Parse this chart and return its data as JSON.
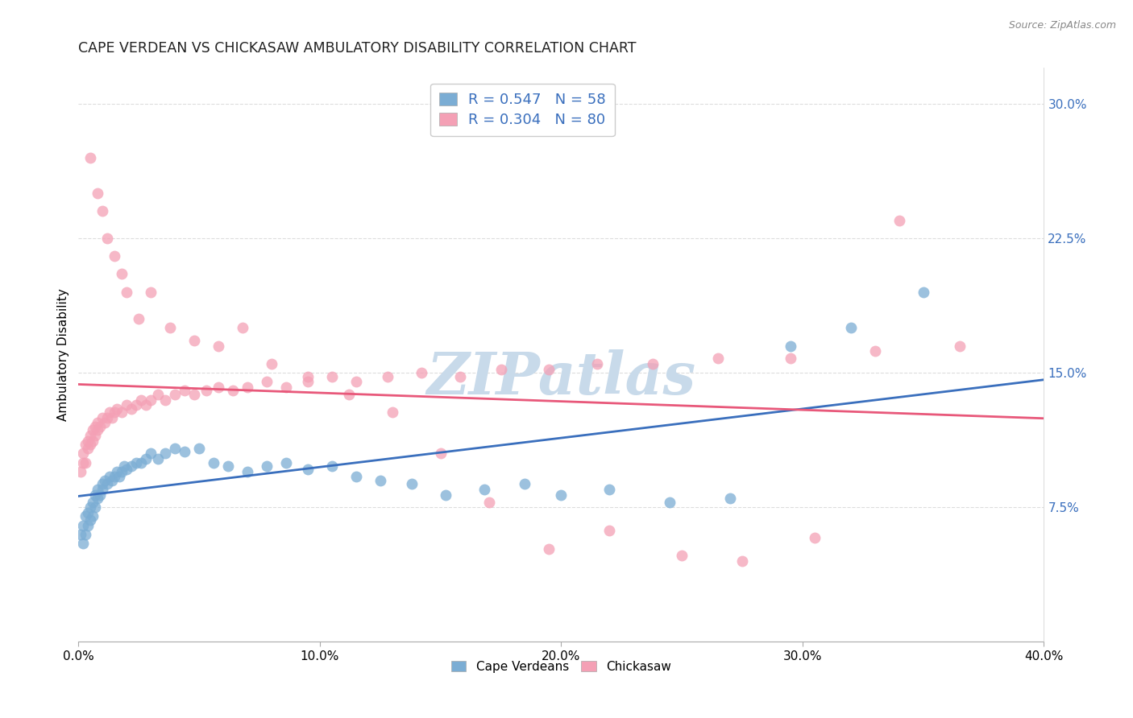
{
  "title": "CAPE VERDEAN VS CHICKASAW AMBULATORY DISABILITY CORRELATION CHART",
  "source": "Source: ZipAtlas.com",
  "ylabel": "Ambulatory Disability",
  "xlim": [
    0.0,
    0.4
  ],
  "ylim": [
    0.0,
    0.32
  ],
  "xticks": [
    0.0,
    0.1,
    0.2,
    0.3,
    0.4
  ],
  "yticks_right": [
    0.075,
    0.15,
    0.225,
    0.3
  ],
  "ytick_labels_right": [
    "7.5%",
    "15.0%",
    "22.5%",
    "30.0%"
  ],
  "xtick_labels": [
    "0.0%",
    "10.0%",
    "20.0%",
    "30.0%",
    "40.0%"
  ],
  "legend1_label": "R = 0.547   N = 58",
  "legend2_label": "R = 0.304   N = 80",
  "blue_color": "#7badd4",
  "pink_color": "#f4a0b5",
  "blue_line_color": "#3a6fbd",
  "pink_line_color": "#e8587a",
  "watermark": "ZIPatlas",
  "watermark_color": "#c8daea",
  "cape_verdeans_x": [
    0.001,
    0.002,
    0.002,
    0.003,
    0.003,
    0.004,
    0.004,
    0.005,
    0.005,
    0.006,
    0.006,
    0.007,
    0.007,
    0.008,
    0.008,
    0.009,
    0.01,
    0.01,
    0.011,
    0.012,
    0.013,
    0.014,
    0.015,
    0.016,
    0.017,
    0.018,
    0.019,
    0.02,
    0.022,
    0.024,
    0.026,
    0.028,
    0.03,
    0.033,
    0.036,
    0.04,
    0.044,
    0.05,
    0.056,
    0.062,
    0.07,
    0.078,
    0.086,
    0.095,
    0.105,
    0.115,
    0.125,
    0.138,
    0.152,
    0.168,
    0.185,
    0.2,
    0.22,
    0.245,
    0.27,
    0.295,
    0.32,
    0.35
  ],
  "cape_verdeans_y": [
    0.06,
    0.055,
    0.065,
    0.06,
    0.07,
    0.065,
    0.072,
    0.068,
    0.075,
    0.07,
    0.078,
    0.075,
    0.082,
    0.08,
    0.085,
    0.082,
    0.088,
    0.085,
    0.09,
    0.088,
    0.092,
    0.09,
    0.092,
    0.095,
    0.092,
    0.095,
    0.098,
    0.096,
    0.098,
    0.1,
    0.1,
    0.102,
    0.105,
    0.102,
    0.105,
    0.108,
    0.106,
    0.108,
    0.1,
    0.098,
    0.095,
    0.098,
    0.1,
    0.096,
    0.098,
    0.092,
    0.09,
    0.088,
    0.082,
    0.085,
    0.088,
    0.082,
    0.085,
    0.078,
    0.08,
    0.165,
    0.175,
    0.195
  ],
  "chickasaw_x": [
    0.001,
    0.002,
    0.002,
    0.003,
    0.003,
    0.004,
    0.004,
    0.005,
    0.005,
    0.006,
    0.006,
    0.007,
    0.007,
    0.008,
    0.008,
    0.009,
    0.01,
    0.011,
    0.012,
    0.013,
    0.014,
    0.015,
    0.016,
    0.018,
    0.02,
    0.022,
    0.024,
    0.026,
    0.028,
    0.03,
    0.033,
    0.036,
    0.04,
    0.044,
    0.048,
    0.053,
    0.058,
    0.064,
    0.07,
    0.078,
    0.086,
    0.095,
    0.105,
    0.115,
    0.128,
    0.142,
    0.158,
    0.175,
    0.195,
    0.215,
    0.238,
    0.265,
    0.295,
    0.33,
    0.365,
    0.005,
    0.008,
    0.01,
    0.012,
    0.015,
    0.018,
    0.02,
    0.025,
    0.03,
    0.038,
    0.048,
    0.058,
    0.068,
    0.08,
    0.095,
    0.112,
    0.13,
    0.15,
    0.17,
    0.195,
    0.22,
    0.25,
    0.275,
    0.305,
    0.34
  ],
  "chickasaw_y": [
    0.095,
    0.1,
    0.105,
    0.1,
    0.11,
    0.108,
    0.112,
    0.11,
    0.115,
    0.112,
    0.118,
    0.115,
    0.12,
    0.118,
    0.122,
    0.12,
    0.125,
    0.122,
    0.125,
    0.128,
    0.125,
    0.128,
    0.13,
    0.128,
    0.132,
    0.13,
    0.132,
    0.135,
    0.132,
    0.135,
    0.138,
    0.135,
    0.138,
    0.14,
    0.138,
    0.14,
    0.142,
    0.14,
    0.142,
    0.145,
    0.142,
    0.145,
    0.148,
    0.145,
    0.148,
    0.15,
    0.148,
    0.152,
    0.152,
    0.155,
    0.155,
    0.158,
    0.158,
    0.162,
    0.165,
    0.27,
    0.25,
    0.24,
    0.225,
    0.215,
    0.205,
    0.195,
    0.18,
    0.195,
    0.175,
    0.168,
    0.165,
    0.175,
    0.155,
    0.148,
    0.138,
    0.128,
    0.105,
    0.078,
    0.052,
    0.062,
    0.048,
    0.045,
    0.058,
    0.235
  ]
}
